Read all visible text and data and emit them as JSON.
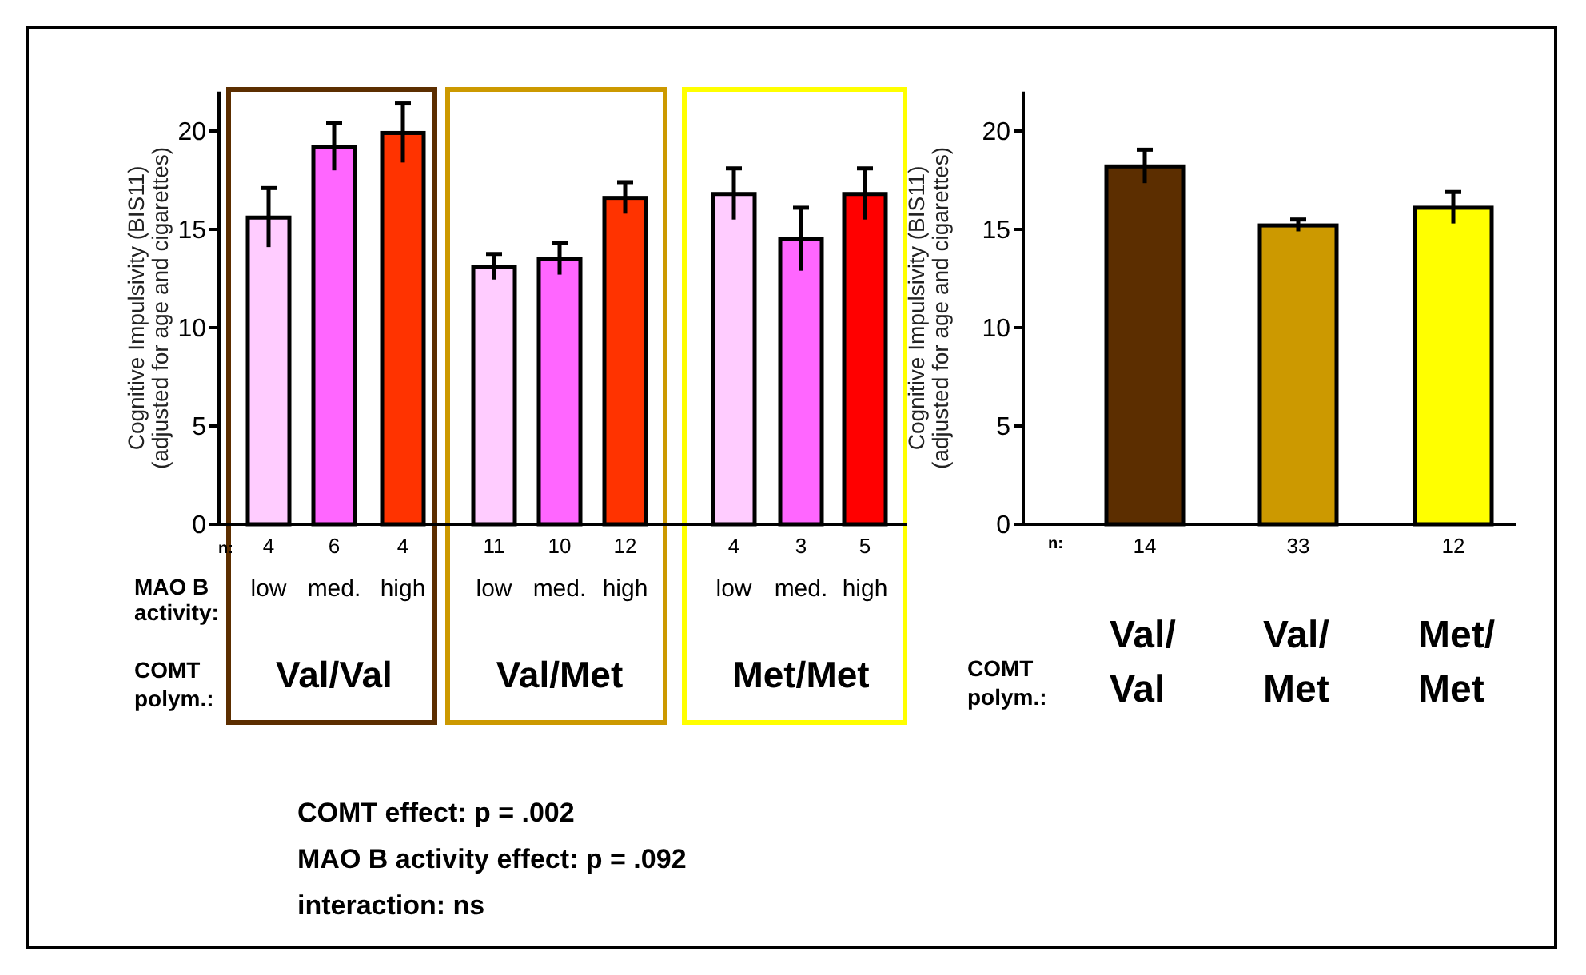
{
  "chart_data": [
    {
      "type": "bar",
      "ylabel": "Cognitive Impulsivity (BIS11)\n(adjusted for age and cigarettes)",
      "categories": [
        "low",
        "med.",
        "high",
        "low",
        "med.",
        "high",
        "low",
        "med.",
        "high"
      ],
      "values": [
        15.6,
        19.2,
        19.9,
        13.1,
        13.5,
        16.6,
        16.8,
        14.5,
        16.8
      ],
      "errors": [
        1.5,
        1.2,
        1.5,
        0.65,
        0.8,
        0.8,
        1.3,
        1.6,
        1.3
      ],
      "colors": [
        "#ffccff",
        "#ff66ff",
        "#ff3300",
        "#ffccff",
        "#ff66ff",
        "#ff3300",
        "#ffccff",
        "#ff66ff",
        "#ff0000"
      ],
      "ylim": [
        0,
        22
      ],
      "yticks": [
        0,
        5,
        10,
        15,
        20
      ],
      "grid": false,
      "annotations": [
        "n:",
        "4",
        "6",
        "4",
        "11",
        "10",
        "12",
        "4",
        "3",
        "5",
        "MAO B\nactivity:",
        "COMT\npolym.:",
        "Val/Val",
        "Val/Met",
        "Met/Met",
        "COMT effect:  p = .002",
        "MAO B activity effect: p = .092",
        "interaction:  ns"
      ]
    },
    {
      "type": "bar",
      "ylabel": "Cognitive Impulsivity (BIS11)\n(adjusted for age and cigarettes)",
      "categories": [
        "Val/Val",
        "Val/Met",
        "Met/Met"
      ],
      "values": [
        18.2,
        15.2,
        16.1
      ],
      "errors": [
        0.85,
        0.3,
        0.8
      ],
      "colors": [
        "#5c2e00",
        "#cc9900",
        "#ffff00"
      ],
      "ylim": [
        0,
        22
      ],
      "yticks": [
        0,
        5,
        10,
        15,
        20
      ],
      "grid": false,
      "annotations": [
        "n:",
        "14",
        "33",
        "12",
        "COMT\npolym.:"
      ]
    }
  ]
}
